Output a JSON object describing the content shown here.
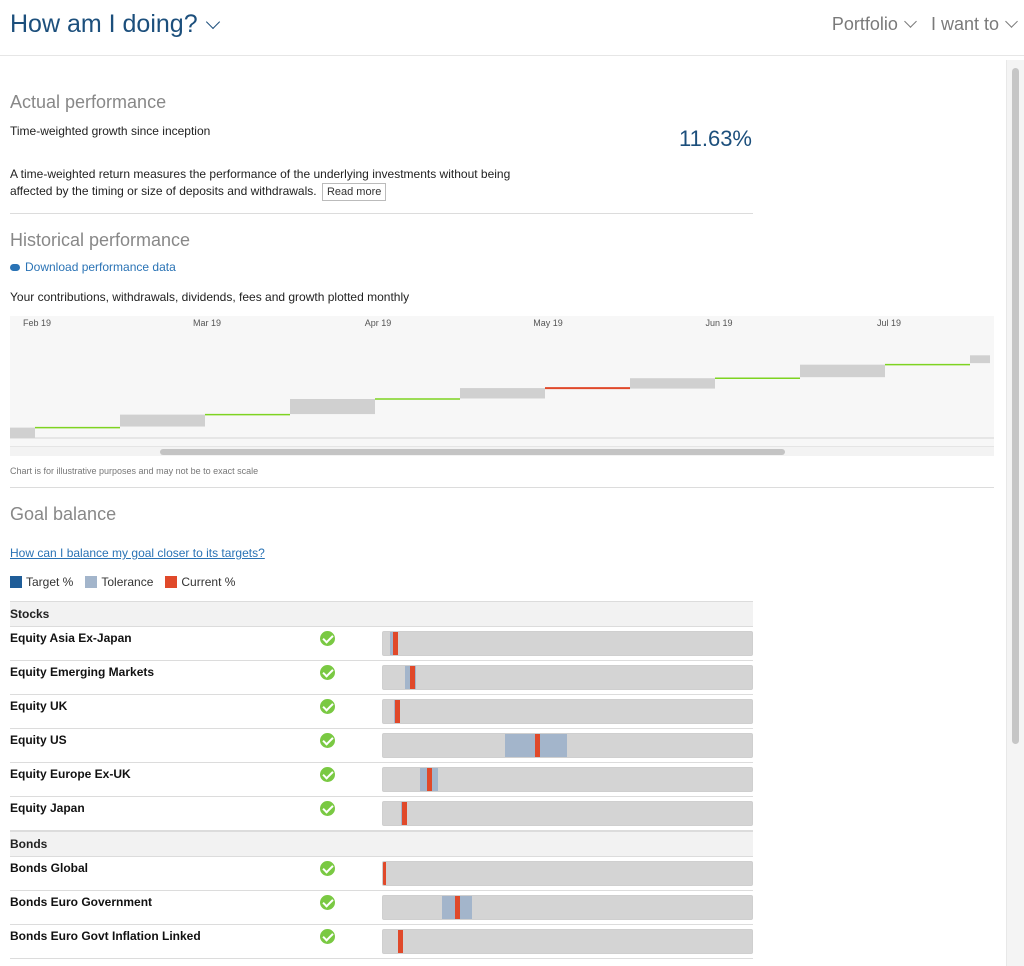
{
  "header": {
    "title": "How am I doing?",
    "nav": [
      "Portfolio",
      "I want to"
    ]
  },
  "actual": {
    "heading": "Actual performance",
    "label": "Time-weighted growth since inception",
    "value": "11.63%",
    "description": "A time-weighted return measures the performance of the underlying investments without being affected by the timing or size of deposits and withdrawals.",
    "read_more": "Read more"
  },
  "historical": {
    "heading": "Historical performance",
    "download": "Download performance data",
    "subtitle": "Your contributions, withdrawals, dividends, fees and growth plotted monthly",
    "note": "Chart is for illustrative purposes and may not be to exact scale"
  },
  "chart_data": {
    "type": "waterfall",
    "months": [
      "Feb 19",
      "Mar 19",
      "Apr 19",
      "May 19",
      "Jun 19",
      "Jul 19"
    ],
    "colors": {
      "box": "#d0d0d0",
      "up": "#7ed321",
      "down": "#e0492a",
      "background": "#f7f7f7"
    },
    "steps": [
      {
        "kind": "box",
        "from": 0,
        "to": 1.0
      },
      {
        "kind": "up",
        "from": 1.0,
        "to": 1.1
      },
      {
        "kind": "box",
        "from": 1.1,
        "to": 2.25
      },
      {
        "kind": "up",
        "from": 2.25,
        "to": 2.3
      },
      {
        "kind": "box",
        "from": 2.3,
        "to": 3.75
      },
      {
        "kind": "up",
        "from": 3.75,
        "to": 3.8
      },
      {
        "kind": "box",
        "from": 3.8,
        "to": 4.8
      },
      {
        "kind": "down",
        "from": 4.8,
        "to": 4.75
      },
      {
        "kind": "box",
        "from": 4.75,
        "to": 5.75
      },
      {
        "kind": "up",
        "from": 5.75,
        "to": 5.85
      },
      {
        "kind": "box",
        "from": 5.85,
        "to": 7.05
      },
      {
        "kind": "up",
        "from": 7.05,
        "to": 7.2
      },
      {
        "kind": "box",
        "from": 7.2,
        "to": 7.95
      }
    ],
    "ylim": [
      0,
      10
    ]
  },
  "goal": {
    "heading": "Goal balance",
    "link": "How can I balance my goal closer to its targets?",
    "legend": [
      {
        "label": "Target %",
        "color": "#1f5d98"
      },
      {
        "label": "Tolerance",
        "color": "#a3b5cb"
      },
      {
        "label": "Current %",
        "color": "#e0492a"
      }
    ],
    "groups": [
      {
        "name": "Stocks",
        "rows": [
          {
            "label": "Equity Asia Ex-Japan",
            "tol_from": 2,
            "tol_to": 4,
            "current": 2.9
          },
          {
            "label": "Equity Emerging Markets",
            "tol_from": 6,
            "tol_to": 9,
            "current": 7.5
          },
          {
            "label": "Equity UK",
            "tol_from": 3,
            "tol_to": 4,
            "current": 3.5
          },
          {
            "label": "Equity US",
            "tol_from": 33,
            "tol_to": 50,
            "current": 41.5
          },
          {
            "label": "Equity Europe Ex-UK",
            "tol_from": 10,
            "tol_to": 15,
            "current": 12.3
          },
          {
            "label": "Equity Japan",
            "tol_from": 5,
            "tol_to": 6,
            "current": 5.3
          }
        ]
      },
      {
        "name": "Bonds",
        "rows": [
          {
            "label": "Bonds Global",
            "tol_from": 0,
            "tol_to": 0,
            "current": 0
          },
          {
            "label": "Bonds Euro Government",
            "tol_from": 16,
            "tol_to": 24,
            "current": 19.7
          },
          {
            "label": "Bonds Euro Govt Inflation Linked",
            "tol_from": 4,
            "tol_to": 5,
            "current": 4.4
          }
        ]
      }
    ]
  }
}
